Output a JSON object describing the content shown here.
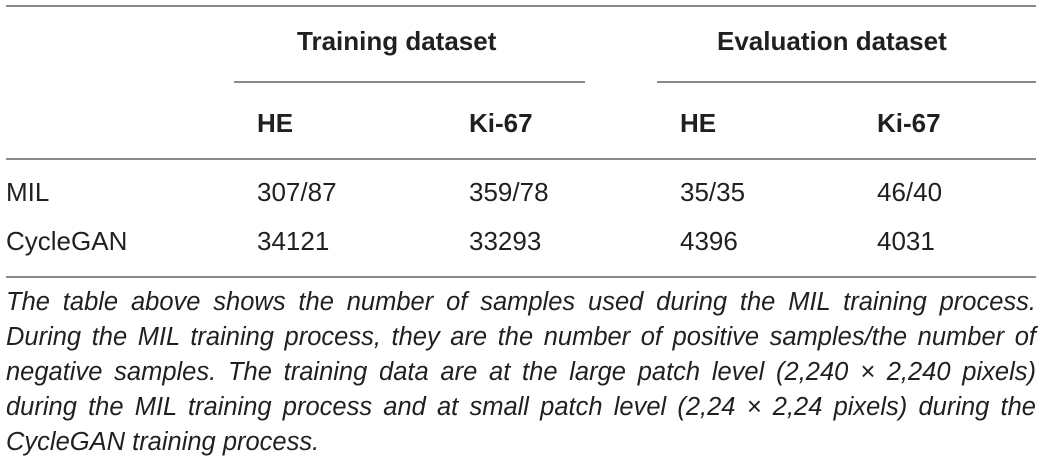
{
  "table": {
    "group_headers": [
      "Training dataset",
      "Evaluation dataset"
    ],
    "sub_headers": [
      "HE",
      "Ki-67",
      "HE",
      "Ki-67"
    ],
    "rows": [
      {
        "label": "MIL",
        "values": [
          "307/87",
          "359/78",
          "35/35",
          "46/40"
        ]
      },
      {
        "label": "CycleGAN",
        "values": [
          "34121",
          "33293",
          "4396",
          "4031"
        ]
      }
    ]
  },
  "footnote": "The table above shows the number of samples used during the MIL training process. During the MIL training process, they are the number of positive samples/the number of negative samples. The training data are at the large patch level (2,240 × 2,240 pixels) during the MIL training process and at small patch level (2,24 × 2,24 pixels) during the CycleGAN training process."
}
